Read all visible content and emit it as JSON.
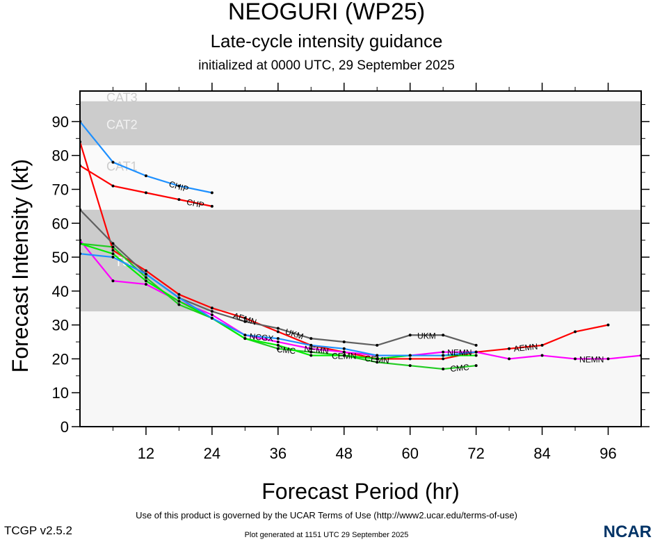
{
  "title": "NEOGURI (WP25)",
  "subtitle": "Late-cycle intensity guidance",
  "init_text": "initialized at 0000 UTC, 29 September 2025",
  "footer": {
    "terms": "Use of this product is governed by the UCAR Terms of Use (http://www2.ucar.edu/terms-of-use)",
    "version": "TCGP v2.5.2",
    "generated": "Plot generated at 1151 UTC   29 September 2025",
    "logo": "NCAR"
  },
  "chart_data": {
    "type": "line",
    "xlabel": "Forecast Period (hr)",
    "ylabel": "Forecast Intensity (kt)",
    "xlim": [
      0,
      102
    ],
    "ylim": [
      0,
      99
    ],
    "xticks": [
      12,
      24,
      36,
      48,
      60,
      72,
      84,
      96
    ],
    "yticks": [
      0,
      10,
      20,
      30,
      40,
      50,
      60,
      70,
      80,
      90
    ],
    "bands": [
      {
        "label": "TS",
        "from": 34,
        "to": 64,
        "color": "#cccccc",
        "label_color": "#ffffff"
      },
      {
        "label": "CAT1",
        "from": 64,
        "to": 83,
        "color": "#fafafa",
        "label_color": "#cccccc"
      },
      {
        "label": "CAT2",
        "from": 83,
        "to": 96,
        "color": "#cccccc",
        "label_color": "#f2f2f2"
      },
      {
        "label": "CAT3",
        "from": 96,
        "to": 113,
        "color": "#fafafa",
        "label_color": "#cccccc"
      }
    ],
    "background_color": "#f7f7f7",
    "series": [
      {
        "name": "CHIP",
        "color": "#1e90ff",
        "x": [
          0,
          6,
          12,
          18,
          24
        ],
        "y": [
          90,
          78,
          74,
          71,
          69
        ],
        "label_at": [
          18
        ]
      },
      {
        "name": "CHP",
        "color": "#ff0000",
        "x": [
          0,
          6,
          12,
          18,
          24
        ],
        "y": [
          77,
          71,
          69,
          67,
          65
        ],
        "label_at": [
          21
        ]
      },
      {
        "name": "AEMN",
        "color": "#ff0000",
        "x": [
          0,
          6,
          12,
          18,
          24,
          30,
          36,
          42,
          48,
          54,
          60,
          66,
          72,
          78,
          84,
          90,
          96
        ],
        "y": [
          84,
          52,
          46,
          39,
          35,
          32,
          28,
          24,
          22,
          20,
          20,
          20,
          22,
          23,
          24,
          28,
          30
        ],
        "label_at": [
          30,
          81
        ]
      },
      {
        "name": "UKM",
        "color": "#606060",
        "x": [
          0,
          6,
          12,
          18,
          24,
          30,
          36,
          42,
          48,
          54,
          60,
          66,
          72
        ],
        "y": [
          64,
          54,
          45,
          38,
          34,
          31,
          29,
          26,
          25,
          24,
          27,
          27,
          24
        ],
        "label_at": [
          39,
          63
        ]
      },
      {
        "name": "NEMN",
        "color": "#ff00ff",
        "x": [
          0,
          6,
          12,
          18,
          24,
          30,
          36,
          42,
          48,
          54,
          60,
          66,
          72,
          78,
          84,
          90,
          96,
          102
        ],
        "y": [
          55,
          43,
          42,
          37,
          33,
          27,
          25,
          23,
          22,
          21,
          21,
          22,
          22,
          20,
          21,
          20,
          20,
          21
        ],
        "label_at": [
          40,
          69,
          93
        ]
      },
      {
        "name": "CMC",
        "color": "#22cc22",
        "x": [
          0,
          6,
          12,
          18,
          24,
          30,
          36,
          42,
          48,
          54,
          60,
          66,
          72
        ],
        "y": [
          54,
          53,
          44,
          36,
          32,
          26,
          23,
          22,
          21,
          19,
          18,
          17,
          18
        ],
        "label_at": [
          39,
          69
        ]
      },
      {
        "name": "CEMN",
        "color": "#00ee00",
        "x": [
          0,
          6,
          12,
          18,
          24,
          30,
          36,
          42,
          48,
          54,
          60,
          66,
          72
        ],
        "y": [
          54,
          51,
          43,
          37,
          32,
          26,
          24,
          21,
          21,
          20,
          21,
          21,
          21
        ],
        "label_at": [
          42,
          54
        ]
      },
      {
        "name": "NCGX",
        "color": "#1e90ff",
        "x": [
          0,
          6,
          12,
          18,
          24,
          30,
          36,
          42,
          48,
          54,
          60,
          66,
          72
        ],
        "y": [
          51,
          50,
          45,
          38,
          32,
          27,
          26,
          24,
          23,
          21,
          21,
          21,
          22
        ],
        "label_at": [
          42
        ]
      }
    ]
  }
}
